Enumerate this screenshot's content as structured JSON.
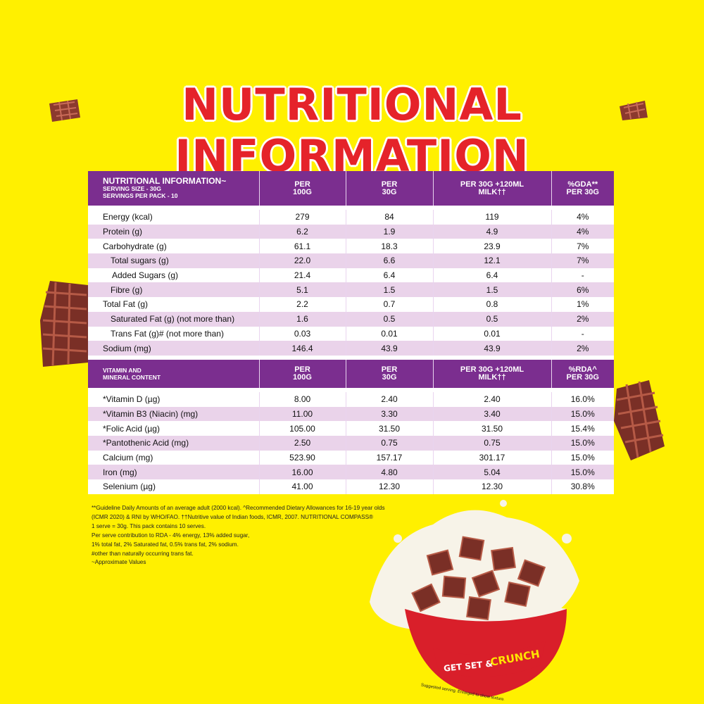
{
  "page_title": "NUTRITIONAL INFORMATION",
  "nutrition": {
    "header": {
      "title": "NUTRITIONAL INFORMATION~",
      "serving_size": "SERVING SIZE - 30g",
      "servings_per_pack": "SERVINGS PER PACK - 10",
      "col1": "PER 100G",
      "col2": "PER 30G",
      "col3_line1": "PER 30G +120ML",
      "col3_line2": "MILK††",
      "col4_line1": "%GDA**",
      "col4_line2": "PER 30G"
    },
    "rows": [
      {
        "label": "Energy (kcal)",
        "v1": "279",
        "v2": "84",
        "v3": "119",
        "v4": "4%"
      },
      {
        "label": "Protein (g)",
        "v1": "6.2",
        "v2": "1.9",
        "v3": "4.9",
        "v4": "4%"
      },
      {
        "label": "Carbohydrate (g)",
        "v1": "61.1",
        "v2": "18.3",
        "v3": "23.9",
        "v4": "7%"
      },
      {
        "label": "Total sugars (g)",
        "v1": "22.0",
        "v2": "6.6",
        "v3": "12.1",
        "v4": "7%"
      },
      {
        "label": "Added Sugars (g)",
        "v1": "21.4",
        "v2": "6.4",
        "v3": "6.4",
        "v4": "-"
      },
      {
        "label": "Fibre (g)",
        "v1": "5.1",
        "v2": "1.5",
        "v3": "1.5",
        "v4": "6%"
      },
      {
        "label": "Total Fat (g)",
        "v1": "2.2",
        "v2": "0.7",
        "v3": "0.8",
        "v4": "1%"
      },
      {
        "label": "Saturated Fat (g) (not more than)",
        "v1": "1.6",
        "v2": "0.5",
        "v3": "0.5",
        "v4": "2%"
      },
      {
        "label": "Trans Fat (g)# (not more than)",
        "v1": "0.03",
        "v2": "0.01",
        "v3": "0.01",
        "v4": "-"
      },
      {
        "label": "Sodium (mg)",
        "v1": "146.4",
        "v2": "43.9",
        "v3": "43.9",
        "v4": "2%"
      }
    ]
  },
  "vitamins": {
    "header": {
      "title_line1": "VITAMIN AND",
      "title_line2": "MINERAL CONTENT",
      "col1": "PER 100G",
      "col2": "PER 30G",
      "col3_line1": "PER 30G +120ML",
      "col3_line2": "MILK††",
      "col4_line1": "%RDA^",
      "col4_line2": "PER 30G"
    },
    "rows": [
      {
        "label": "*Vitamin D (µg)",
        "v1": "8.00",
        "v2": "2.40",
        "v3": "2.40",
        "v4": "16.0%"
      },
      {
        "label": "*Vitamin B3 (Niacin) (mg)",
        "v1": "11.00",
        "v2": "3.30",
        "v3": "3.40",
        "v4": "15.0%"
      },
      {
        "label": "*Folic Acid (µg)",
        "v1": "105.00",
        "v2": "31.50",
        "v3": "31.50",
        "v4": "15.4%"
      },
      {
        "label": "*Pantothenic Acid (mg)",
        "v1": "2.50",
        "v2": "0.75",
        "v3": "0.75",
        "v4": "15.0%"
      },
      {
        "label": "Calcium (mg)",
        "v1": "523.90",
        "v2": "157.17",
        "v3": "301.17",
        "v4": "15.0%"
      },
      {
        "label": "Iron  (mg)",
        "v1": "16.00",
        "v2": "4.80",
        "v3": "5.04",
        "v4": "15.0%"
      },
      {
        "label": "Selenium (µg)",
        "v1": "41.00",
        "v2": "12.30",
        "v3": "12.30",
        "v4": "30.8%"
      }
    ]
  },
  "footnotes": [
    "**Guideline Daily Amounts of an average adult (2000 kcal). ^Recommended Dietary Allowances for 16-19 year olds",
    "(ICMR 2020) & RNI by WHO/FAO. ††Nutritive value of Indian foods, ICMR, 2007.  NUTRITIONAL COMPASS®",
    "1 serve = 30g. This pack contains 10 serves.",
    "Per serve contribution to RDA - 4% energy, 13% added sugar,",
    "1% total fat, 2% Saturated fat, 0.5% trans fat, 2% sodium.",
    "#other than naturally occurring trans fat.",
    "~Approximate Values"
  ],
  "bowl": {
    "slogan_part1": "GET SET &",
    "slogan_part2": "CRUNCH",
    "caption": "Suggested serving. Enlarged to show texture."
  },
  "colors": {
    "background": "#fff000",
    "title_red": "#e5232a",
    "header_purple": "#7b2e8f",
    "row_alt": "#ead3ea"
  }
}
